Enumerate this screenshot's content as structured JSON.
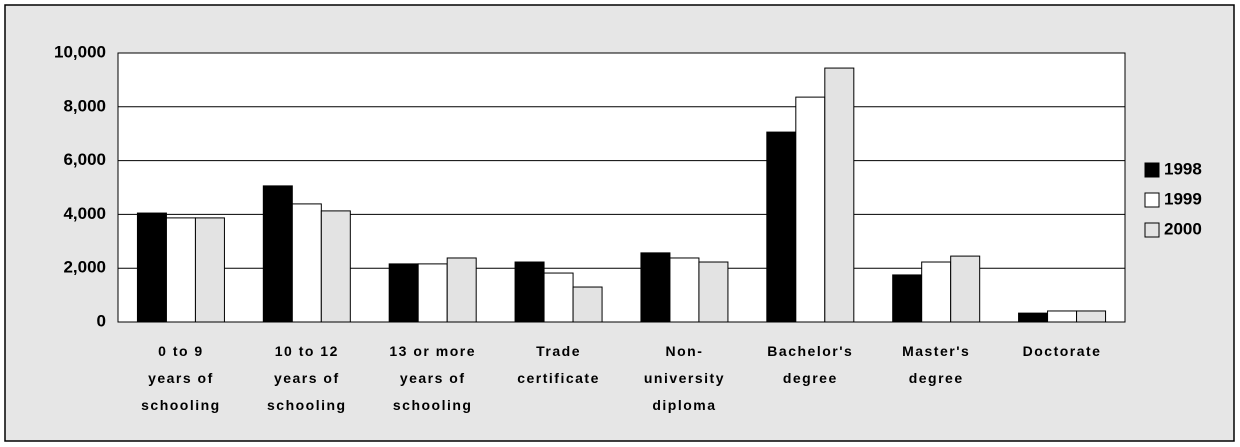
{
  "chart_data": {
    "type": "bar",
    "categories": [
      "0 to 9\nyears of\nschooling",
      "10 to 12\nyears of\nschooling",
      "13 or more\nyears of\nschooling",
      "Trade\ncertificate",
      "Non-\nuniversity\ndiploma",
      "Bachelor's\ndegree",
      "Master's\ndegree",
      "Doctorate"
    ],
    "series": [
      {
        "name": "1998",
        "color": "#000000",
        "values": [
          4050,
          5060,
          2160,
          2230,
          2570,
          7060,
          1750,
          330
        ]
      },
      {
        "name": "1999",
        "color": "#ffffff",
        "values": [
          3870,
          4390,
          2160,
          1820,
          2380,
          8360,
          2230,
          410
        ]
      },
      {
        "name": "2000",
        "color": "#e3e3e3",
        "values": [
          3870,
          4130,
          2380,
          1300,
          2230,
          9440,
          2450,
          410
        ]
      }
    ],
    "ylim": [
      0,
      10000
    ],
    "yticks": [
      0,
      {
        "value": 2000,
        "label": "2,000"
      },
      {
        "value": 4000,
        "label": "4,000"
      },
      {
        "value": 6000,
        "label": "6,000"
      },
      {
        "value": 8000,
        "label": "8,000"
      },
      {
        "value": 10000,
        "label": "10,000"
      }
    ],
    "grid": true,
    "legend": "right"
  }
}
